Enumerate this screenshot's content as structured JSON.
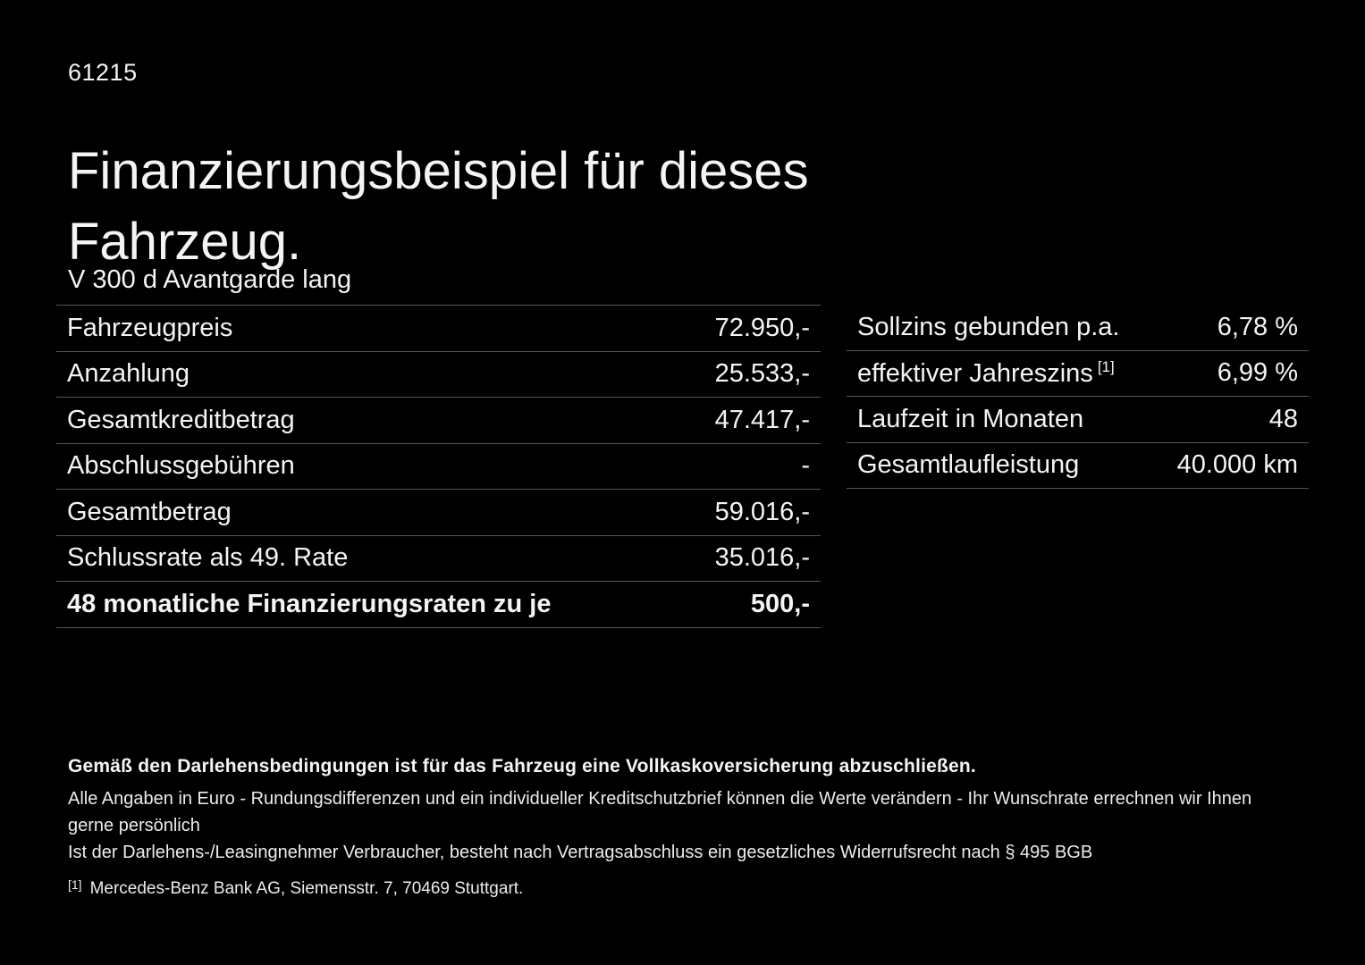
{
  "page": {
    "doc_number": "61215",
    "title": "Finanzierungsbeispiel für dieses Fahrzeug.",
    "vehicle_model": "V 300 d Avantgarde lang"
  },
  "financing_table": {
    "rows": [
      {
        "label": "Fahrzeugpreis",
        "value": "72.950,-"
      },
      {
        "label": "Anzahlung",
        "value": "25.533,-"
      },
      {
        "label": "Gesamtkreditbetrag",
        "value": "47.417,-"
      },
      {
        "label": "Abschlussgebühren",
        "value": "-"
      },
      {
        "label": "Gesamtbetrag",
        "value": "59.016,-"
      },
      {
        "label": "Schlussrate als 49. Rate",
        "value": "35.016,-"
      },
      {
        "label": "48 monatliche Finanzierungsraten zu je",
        "value": "500,-"
      }
    ]
  },
  "conditions_table": {
    "rows": [
      {
        "label": "Sollzins gebunden p.a.",
        "value": "6,78 %"
      },
      {
        "label": "effektiver Jahreszins",
        "footnote": "[1]",
        "value": "6,99 %"
      },
      {
        "label": "Laufzeit in Monaten",
        "value": "48"
      },
      {
        "label": "Gesamtlaufleistung",
        "value": "40.000 km"
      }
    ]
  },
  "footer": {
    "line1": "Gemäß den Darlehensbedingungen ist für das Fahrzeug eine Vollkaskoversicherung abzuschließen.",
    "line2": "Alle Angaben in Euro - Rundungsdifferenzen und ein individueller Kreditschutzbrief können die Werte verändern - Ihr Wunschrate errechnen wir Ihnen gerne persönlich",
    "line3": "Ist der Darlehens-/Leasingnehmer Verbraucher, besteht nach Vertragsabschluss ein gesetzliches Widerrufsrecht nach § 495 BGB",
    "footnote_marker": "[1]",
    "footnote_text": "Mercedes-Benz Bank AG, Siemensstr. 7, 70469 Stuttgart."
  },
  "colors": {
    "background": "#000000",
    "text": "#f4f4f4",
    "divider": "#565656"
  }
}
